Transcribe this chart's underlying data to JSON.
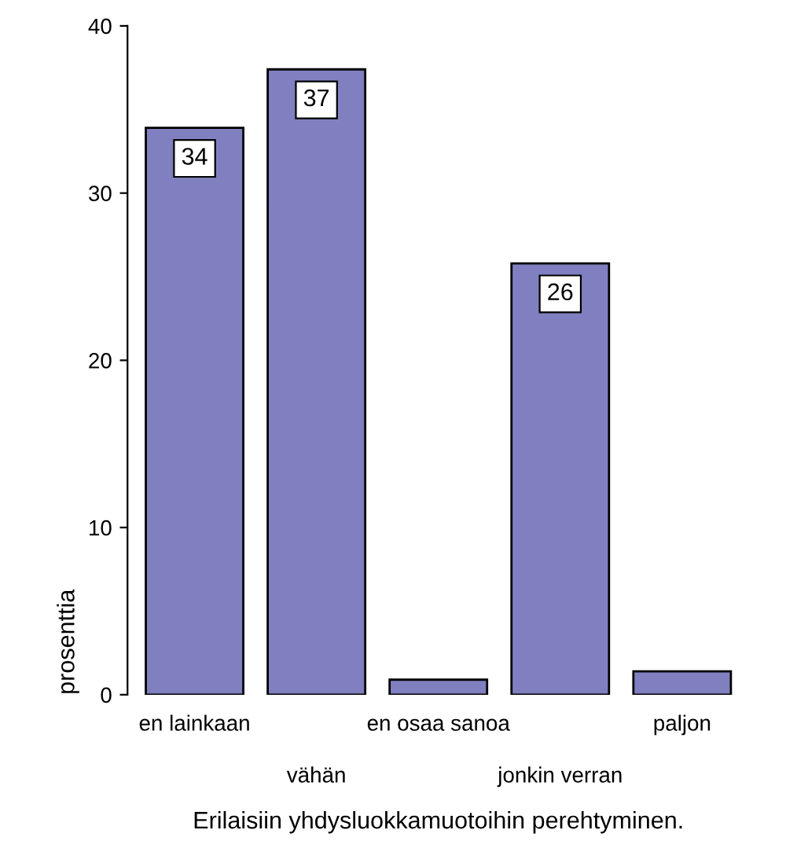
{
  "chart_data": {
    "type": "bar",
    "categories": [
      "en lainkaan",
      "vähän",
      "en osaa sanoa",
      "jonkin verran",
      "paljon"
    ],
    "values": [
      33.9,
      37.4,
      0.9,
      25.8,
      1.4
    ],
    "value_labels": [
      "34",
      "37",
      null,
      "26",
      null
    ],
    "color": "#8080c0",
    "ylim": [
      0,
      40
    ],
    "yticks": [
      0,
      10,
      20,
      30,
      40
    ],
    "ylabel": "prosenttia",
    "xlabel": "Erilaisiin yhdysluokkamuotoihin perehtyminen.",
    "grid": false,
    "legend": false
  }
}
